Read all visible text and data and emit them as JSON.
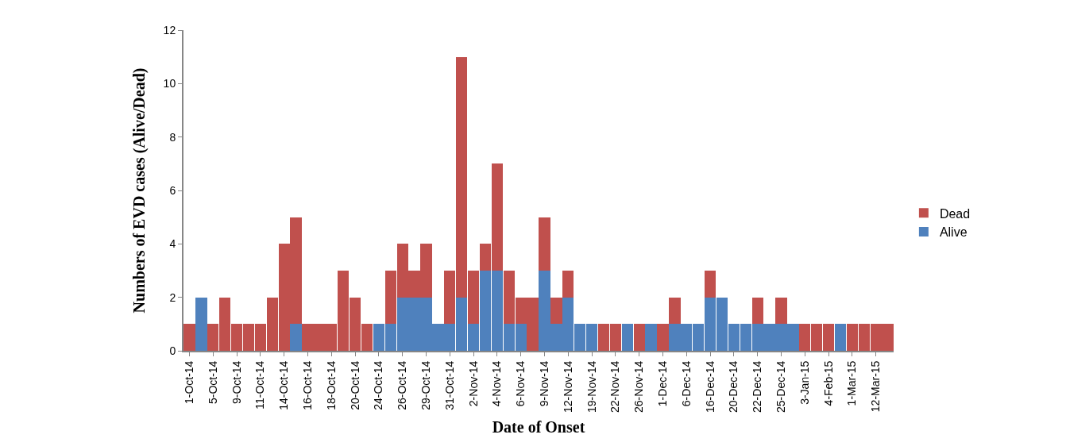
{
  "chart_data": {
    "type": "bar",
    "stacked": true,
    "xlabel": "Date of Onset",
    "ylabel": "Numbers of EVD cases (Alive/Dead)",
    "categories": [
      "1-Oct-14",
      null,
      "5-Oct-14",
      null,
      "9-Oct-14",
      null,
      "11-Oct-14",
      null,
      "14-Oct-14",
      null,
      "16-Oct-14",
      null,
      "18-Oct-14",
      null,
      "20-Oct-14",
      null,
      "24-Oct-14",
      null,
      "26-Oct-14",
      null,
      "29-Oct-14",
      null,
      "31-Oct-14",
      null,
      "2-Nov-14",
      null,
      "4-Nov-14",
      null,
      "6-Nov-14",
      null,
      "9-Nov-14",
      null,
      "12-Nov-14",
      null,
      "19-Nov-14",
      null,
      "22-Nov-14",
      null,
      "26-Nov-14",
      null,
      "1-Dec-14",
      null,
      "6-Dec-14",
      null,
      "16-Dec-14",
      null,
      "20-Dec-14",
      null,
      "22-Dec-14",
      null,
      "25-Dec-14",
      null,
      "3-Jan-15",
      null,
      "4-Feb-15",
      null,
      "1-Mar-15",
      null,
      "12-Mar-15",
      null
    ],
    "series": [
      {
        "name": "Alive",
        "color": "#4f81bd",
        "values": [
          0,
          2,
          0,
          0,
          0,
          0,
          0,
          0,
          0,
          1,
          0,
          0,
          0,
          0,
          0,
          0,
          1,
          1,
          2,
          2,
          2,
          1,
          1,
          2,
          1,
          3,
          3,
          1,
          1,
          0,
          3,
          1,
          2,
          1,
          1,
          0,
          0,
          1,
          0,
          1,
          0,
          1,
          1,
          1,
          2,
          2,
          1,
          1,
          1,
          1,
          1,
          1,
          0,
          0,
          0,
          1,
          0,
          0,
          0,
          0
        ]
      },
      {
        "name": "Dead",
        "color": "#c0504d",
        "values": [
          1,
          0,
          1,
          2,
          1,
          1,
          1,
          2,
          4,
          4,
          1,
          1,
          1,
          3,
          2,
          1,
          0,
          2,
          2,
          1,
          2,
          0,
          2,
          9,
          2,
          1,
          4,
          2,
          1,
          2,
          2,
          1,
          1,
          0,
          0,
          1,
          1,
          0,
          1,
          0,
          1,
          1,
          0,
          0,
          1,
          0,
          0,
          0,
          1,
          0,
          1,
          0,
          1,
          1,
          1,
          0,
          1,
          1,
          1,
          1
        ]
      }
    ],
    "ylim": [
      0,
      12
    ],
    "yticks": [
      0,
      2,
      4,
      6,
      8,
      10,
      12
    ],
    "legend": "right"
  }
}
